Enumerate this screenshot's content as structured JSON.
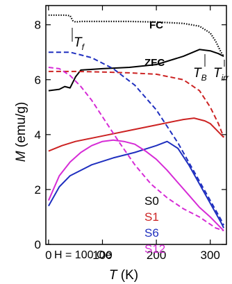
{
  "chart_data": {
    "type": "line",
    "xlabel_main": "T",
    "xlabel_unit": " (K)",
    "ylabel_main": "M",
    "ylabel_unit": " (emu/g)",
    "xlim": [
      -5,
      330
    ],
    "ylim": [
      0,
      8.7
    ],
    "xticks": [
      0,
      100,
      200,
      300
    ],
    "yticks": [
      0,
      2,
      4,
      6,
      8
    ],
    "xtick_labels": [
      "0",
      "100",
      "200",
      "300"
    ],
    "ytick_labels": [
      "0",
      "2",
      "4",
      "6",
      "8"
    ],
    "grid": false,
    "legend_placement": "lower-center",
    "legend": [
      {
        "label": "S0",
        "color": "#000000"
      },
      {
        "label": "S1",
        "color": "#cc2222"
      },
      {
        "label": "S6",
        "color": "#1f2fbf"
      },
      {
        "label": "S12",
        "color": "#d62bd6"
      }
    ],
    "field_label": "H = 100 Oe",
    "annotations": {
      "fc": "FC",
      "zfc": "ZFC",
      "tf": "T",
      "tf_sub": "f",
      "tb": "T",
      "tb_sub": "B",
      "tirr": "T",
      "tirr_sub": "irr"
    },
    "series": [
      {
        "name": "S0",
        "mode": "FC",
        "color": "#000000",
        "style": "dotted",
        "x": [
          0,
          30,
          40,
          45,
          50,
          60,
          100,
          150,
          200,
          250,
          280,
          300,
          310,
          320,
          325
        ],
        "y": [
          8.35,
          8.35,
          8.33,
          8.15,
          8.1,
          8.12,
          8.12,
          8.12,
          8.1,
          8.05,
          7.95,
          7.7,
          7.4,
          7.0,
          6.85
        ]
      },
      {
        "name": "S0",
        "mode": "ZFC",
        "color": "#000000",
        "style": "solid",
        "x": [
          0,
          20,
          30,
          40,
          50,
          60,
          100,
          150,
          200,
          250,
          280,
          300,
          315,
          325
        ],
        "y": [
          5.6,
          5.65,
          5.75,
          5.7,
          6.1,
          6.35,
          6.4,
          6.45,
          6.55,
          6.85,
          7.1,
          7.05,
          6.95,
          6.85
        ]
      },
      {
        "name": "S1",
        "mode": "FC",
        "color": "#cc2222",
        "style": "dashed",
        "x": [
          0,
          50,
          100,
          150,
          200,
          250,
          280,
          300,
          315,
          325
        ],
        "y": [
          6.3,
          6.3,
          6.28,
          6.25,
          6.2,
          6.0,
          5.6,
          5.0,
          4.4,
          3.9
        ]
      },
      {
        "name": "S1",
        "mode": "ZFC",
        "color": "#cc2222",
        "style": "solid",
        "x": [
          0,
          25,
          50,
          100,
          150,
          200,
          250,
          270,
          290,
          300,
          310,
          320,
          325
        ],
        "y": [
          3.4,
          3.6,
          3.75,
          3.95,
          4.15,
          4.35,
          4.55,
          4.6,
          4.5,
          4.4,
          4.2,
          4.0,
          3.9
        ]
      },
      {
        "name": "S6",
        "mode": "FC",
        "color": "#1f2fbf",
        "style": "dashed",
        "x": [
          0,
          40,
          80,
          120,
          160,
          200,
          240,
          280,
          300,
          320,
          325
        ],
        "y": [
          7.0,
          7.0,
          6.8,
          6.4,
          5.8,
          4.9,
          3.7,
          2.3,
          1.6,
          0.9,
          0.7
        ]
      },
      {
        "name": "S6",
        "mode": "ZFC",
        "color": "#1f2fbf",
        "style": "solid",
        "x": [
          0,
          20,
          40,
          80,
          120,
          160,
          200,
          220,
          240,
          260,
          280,
          300,
          320,
          325
        ],
        "y": [
          1.4,
          2.1,
          2.5,
          2.9,
          3.15,
          3.35,
          3.6,
          3.75,
          3.5,
          2.9,
          2.2,
          1.5,
          0.8,
          0.6
        ]
      },
      {
        "name": "S12",
        "mode": "FC",
        "color": "#d62bd6",
        "style": "dashed",
        "x": [
          0,
          20,
          40,
          60,
          80,
          100,
          130,
          160,
          190,
          220,
          250,
          280,
          310,
          325
        ],
        "y": [
          6.45,
          6.4,
          6.15,
          5.75,
          5.25,
          4.65,
          3.75,
          2.9,
          2.2,
          1.7,
          1.3,
          1.0,
          0.6,
          0.5
        ]
      },
      {
        "name": "S12",
        "mode": "ZFC",
        "color": "#d62bd6",
        "style": "solid",
        "x": [
          0,
          20,
          40,
          60,
          80,
          100,
          120,
          140,
          160,
          180,
          200,
          220,
          240,
          260,
          280,
          300,
          320,
          325
        ],
        "y": [
          1.6,
          2.5,
          3.0,
          3.35,
          3.6,
          3.75,
          3.8,
          3.75,
          3.65,
          3.4,
          3.1,
          2.7,
          2.25,
          1.8,
          1.35,
          1.0,
          0.6,
          0.5
        ]
      }
    ]
  }
}
